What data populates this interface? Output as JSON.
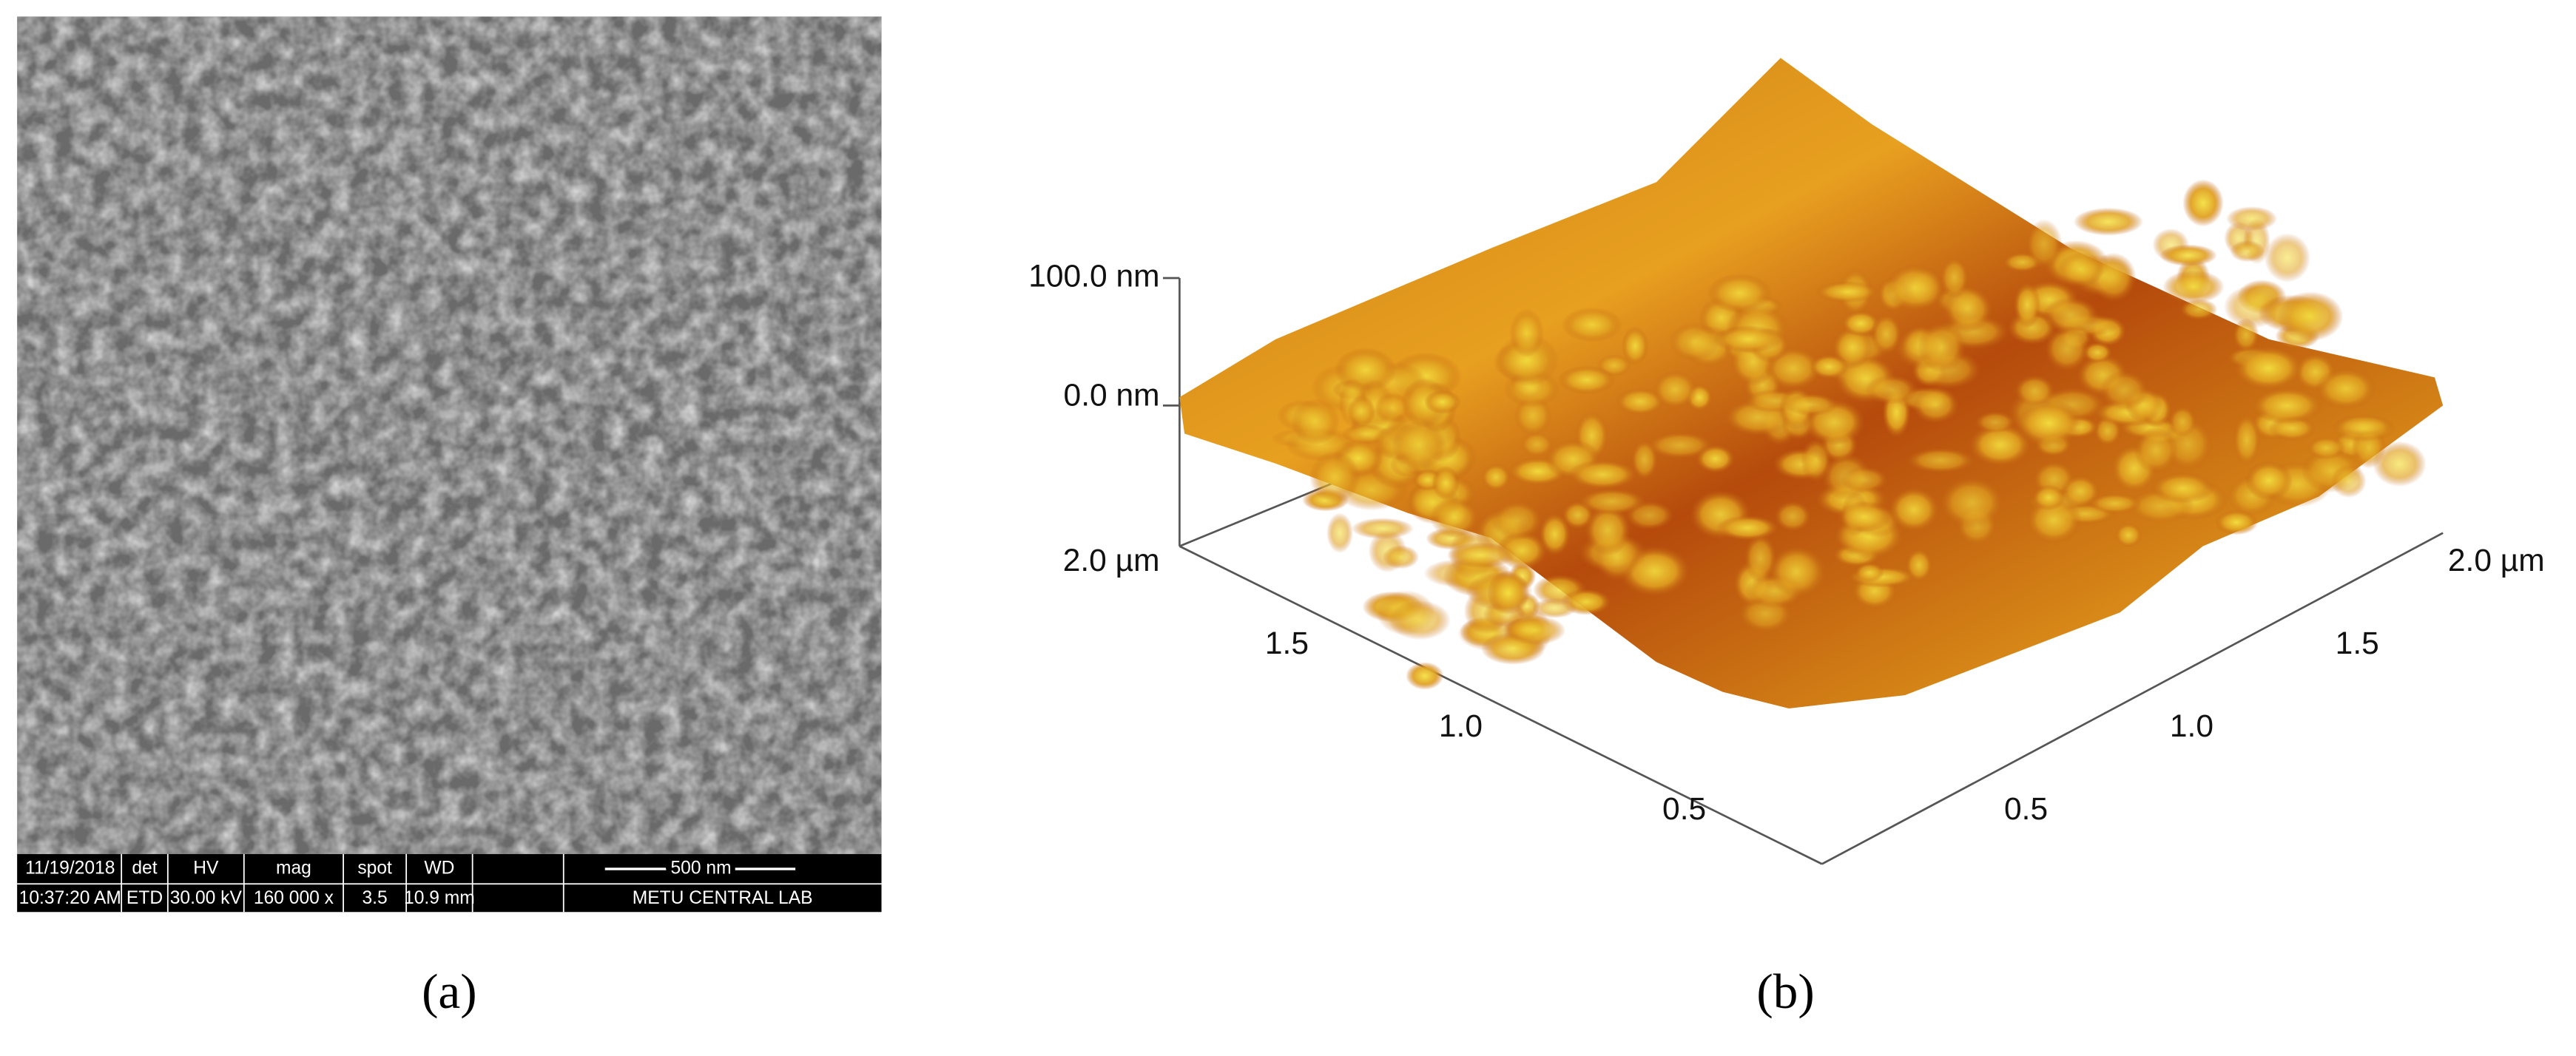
{
  "panels": [
    {
      "label": "(a)",
      "databar": {
        "row1": [
          "11/19/2018",
          "det",
          "HV",
          "mag",
          "spot",
          "WD"
        ],
        "row2": [
          "10:37:20 AM",
          "ETD",
          "30.00 kV",
          "160 000 x",
          "3.5",
          "10.9 mm"
        ],
        "scale_bar": "500 nm",
        "lab": "METU CENTRAL LAB"
      }
    },
    {
      "label": "(b)",
      "z_axis": [
        "100.0 nm",
        "0.0 nm"
      ],
      "left_axis": [
        "2.0 µm",
        "1.5",
        "1.0",
        "0.5"
      ],
      "right_axis": [
        "2.0 µm",
        "1.5",
        "1.0",
        "0.5"
      ]
    }
  ]
}
